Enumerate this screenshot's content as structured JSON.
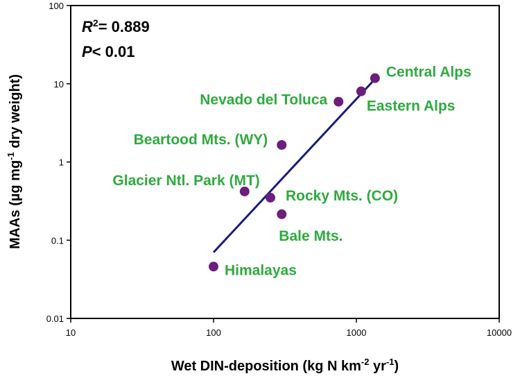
{
  "chart_data": {
    "type": "scatter",
    "x_scale": "log",
    "y_scale": "log",
    "xlim": [
      10,
      10000
    ],
    "ylim": [
      0.01,
      100
    ],
    "x_ticks": [
      "10",
      "100",
      "1000",
      "10000"
    ],
    "y_ticks": [
      "0.01",
      "0.1",
      "1",
      "10",
      "100"
    ],
    "xlabel": {
      "main": "Wet DIN-deposition (kg N km",
      "sup1": "-2",
      "mid": " yr",
      "sup2": "-1",
      "end": ")"
    },
    "ylabel": {
      "main": "MAAs (µg mg",
      "sup": "-1",
      "end": " dry weight)"
    },
    "grid": false,
    "annotations": {
      "r2": {
        "prefix": "R",
        "sup": "2",
        "rest": "= 0.889"
      },
      "p": {
        "prefix": "P",
        "rest": "< 0.01"
      }
    },
    "points": [
      {
        "label": "Central Alps",
        "x": 1350,
        "y": 11.8
      },
      {
        "label": "Eastern Alps",
        "x": 1080,
        "y": 8.0
      },
      {
        "label": "Nevado del Toluca",
        "x": 750,
        "y": 5.9
      },
      {
        "label": "Beartood Mts. (WY)",
        "x": 300,
        "y": 1.65
      },
      {
        "label": "Glacier Ntl. Park (MT)",
        "x": 165,
        "y": 0.42
      },
      {
        "label": "Rocky Mts. (CO)",
        "x": 250,
        "y": 0.35
      },
      {
        "label": "Bale Mts.",
        "x": 300,
        "y": 0.215
      },
      {
        "label": "Himalayas",
        "x": 100,
        "y": 0.046
      }
    ],
    "regression_line": {
      "x": [
        100,
        1350
      ],
      "y": [
        0.07,
        11.5
      ]
    },
    "colors": {
      "point": "#6b1e7c",
      "line": "#1a1a80",
      "label": "#2eaa3f"
    }
  }
}
